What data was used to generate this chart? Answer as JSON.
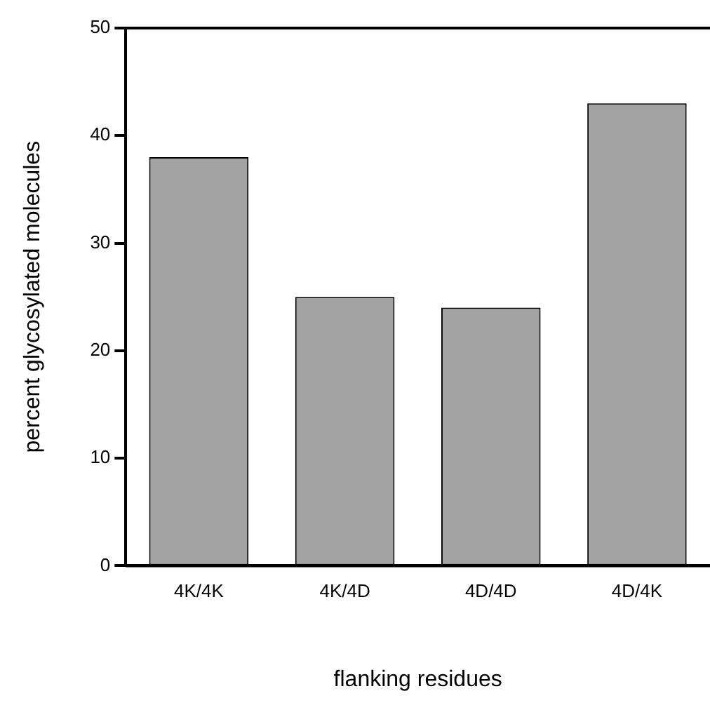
{
  "chart_data": {
    "type": "bar",
    "xlabel": "flanking residues",
    "ylabel": "percent glycosylated molecules",
    "categories": [
      "4K/4K",
      "4K/4D",
      "4D/4D",
      "4D/4K"
    ],
    "values": [
      38,
      25,
      24,
      43
    ],
    "color": "#a3a3a3",
    "ylim": [
      0,
      50
    ],
    "yticks": [
      0,
      10,
      20,
      30,
      40,
      50
    ],
    "grid": false,
    "legend": false
  }
}
